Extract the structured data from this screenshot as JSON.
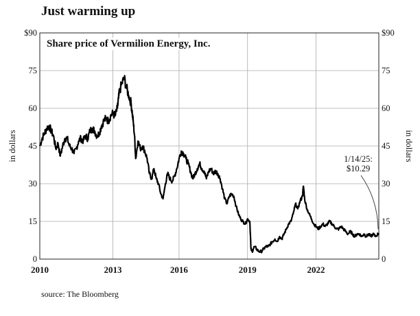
{
  "title": "Just warming up",
  "source": "source: The Bloomberg",
  "chart_data": {
    "type": "line",
    "subtitle": "Share price of Vermilion Energy, Inc.",
    "ylabel_left": "in dollars",
    "ylabel_right": "in dollars",
    "xlim": [
      2010,
      2024.85
    ],
    "ylim": [
      0,
      90
    ],
    "grid": true,
    "x_ticks": [
      {
        "value": 2010,
        "label": "2010"
      },
      {
        "value": 2013.2,
        "label": "2013"
      },
      {
        "value": 2016.1,
        "label": "2016"
      },
      {
        "value": 2019.1,
        "label": "2019"
      },
      {
        "value": 2022.1,
        "label": "2022"
      }
    ],
    "y_ticks": [
      {
        "value": 0,
        "label": "0"
      },
      {
        "value": 15,
        "label": "15"
      },
      {
        "value": 30,
        "label": "30"
      },
      {
        "value": 45,
        "label": "45"
      },
      {
        "value": 60,
        "label": "60"
      },
      {
        "value": 75,
        "label": "75"
      },
      {
        "value": 90,
        "label": "$90"
      }
    ],
    "annotation": {
      "line1": "1/14/25:",
      "line2": "$10.29",
      "x": 2024.85,
      "y": 10.29
    },
    "series": [
      {
        "color": "#000000",
        "points": [
          [
            2010.0,
            45
          ],
          [
            2010.1,
            48
          ],
          [
            2010.2,
            50
          ],
          [
            2010.3,
            52
          ],
          [
            2010.4,
            53
          ],
          [
            2010.5,
            51
          ],
          [
            2010.6,
            49
          ],
          [
            2010.7,
            44
          ],
          [
            2010.8,
            46
          ],
          [
            2010.9,
            41
          ],
          [
            2011.0,
            45
          ],
          [
            2011.1,
            48
          ],
          [
            2011.2,
            48
          ],
          [
            2011.3,
            45
          ],
          [
            2011.4,
            44
          ],
          [
            2011.5,
            42
          ],
          [
            2011.6,
            44
          ],
          [
            2011.7,
            47
          ],
          [
            2011.8,
            48
          ],
          [
            2011.9,
            47
          ],
          [
            2012.0,
            49
          ],
          [
            2012.1,
            48
          ],
          [
            2012.2,
            51
          ],
          [
            2012.3,
            52
          ],
          [
            2012.4,
            51
          ],
          [
            2012.5,
            49
          ],
          [
            2012.6,
            50
          ],
          [
            2012.7,
            53
          ],
          [
            2012.8,
            55
          ],
          [
            2012.9,
            56
          ],
          [
            2013.0,
            55
          ],
          [
            2013.1,
            57
          ],
          [
            2013.2,
            58
          ],
          [
            2013.3,
            57
          ],
          [
            2013.4,
            60
          ],
          [
            2013.45,
            64
          ],
          [
            2013.5,
            67
          ],
          [
            2013.6,
            70
          ],
          [
            2013.7,
            72
          ],
          [
            2013.8,
            68
          ],
          [
            2013.9,
            65
          ],
          [
            2014.0,
            62
          ],
          [
            2014.05,
            58
          ],
          [
            2014.1,
            54
          ],
          [
            2014.15,
            49
          ],
          [
            2014.2,
            40
          ],
          [
            2014.3,
            47
          ],
          [
            2014.4,
            44
          ],
          [
            2014.5,
            45
          ],
          [
            2014.6,
            43
          ],
          [
            2014.7,
            40
          ],
          [
            2014.8,
            34
          ],
          [
            2014.9,
            32
          ],
          [
            2015.0,
            36
          ],
          [
            2015.1,
            32
          ],
          [
            2015.2,
            30
          ],
          [
            2015.3,
            26
          ],
          [
            2015.4,
            24
          ],
          [
            2015.5,
            30
          ],
          [
            2015.6,
            34
          ],
          [
            2015.7,
            32
          ],
          [
            2015.8,
            31
          ],
          [
            2015.9,
            33
          ],
          [
            2016.0,
            36
          ],
          [
            2016.1,
            40
          ],
          [
            2016.2,
            43
          ],
          [
            2016.3,
            42
          ],
          [
            2016.4,
            40
          ],
          [
            2016.5,
            38
          ],
          [
            2016.6,
            35
          ],
          [
            2016.7,
            32
          ],
          [
            2016.8,
            34
          ],
          [
            2016.9,
            36
          ],
          [
            2017.0,
            38
          ],
          [
            2017.1,
            36
          ],
          [
            2017.2,
            35
          ],
          [
            2017.3,
            32
          ],
          [
            2017.4,
            35
          ],
          [
            2017.5,
            36
          ],
          [
            2017.6,
            34
          ],
          [
            2017.7,
            35
          ],
          [
            2017.8,
            34
          ],
          [
            2017.9,
            32
          ],
          [
            2018.0,
            28
          ],
          [
            2018.1,
            24
          ],
          [
            2018.2,
            22
          ],
          [
            2018.3,
            25
          ],
          [
            2018.4,
            26
          ],
          [
            2018.5,
            25
          ],
          [
            2018.6,
            21
          ],
          [
            2018.7,
            18
          ],
          [
            2018.8,
            16
          ],
          [
            2018.9,
            15
          ],
          [
            2019.0,
            14
          ],
          [
            2019.1,
            16
          ],
          [
            2019.2,
            15
          ],
          [
            2019.25,
            4
          ],
          [
            2019.3,
            3
          ],
          [
            2019.4,
            5
          ],
          [
            2019.5,
            4
          ],
          [
            2019.6,
            3
          ],
          [
            2019.7,
            3
          ],
          [
            2019.8,
            4
          ],
          [
            2019.9,
            5
          ],
          [
            2020.0,
            5
          ],
          [
            2020.1,
            6
          ],
          [
            2020.2,
            7
          ],
          [
            2020.3,
            8
          ],
          [
            2020.4,
            7
          ],
          [
            2020.5,
            9
          ],
          [
            2020.6,
            8
          ],
          [
            2020.7,
            10
          ],
          [
            2020.8,
            12
          ],
          [
            2020.9,
            14
          ],
          [
            2021.0,
            15
          ],
          [
            2021.1,
            18
          ],
          [
            2021.2,
            22
          ],
          [
            2021.3,
            20
          ],
          [
            2021.4,
            23
          ],
          [
            2021.5,
            25
          ],
          [
            2021.55,
            29
          ],
          [
            2021.6,
            24
          ],
          [
            2021.7,
            20
          ],
          [
            2021.8,
            18
          ],
          [
            2021.9,
            16
          ],
          [
            2022.0,
            14
          ],
          [
            2022.1,
            13
          ],
          [
            2022.2,
            12
          ],
          [
            2022.3,
            13
          ],
          [
            2022.4,
            14
          ],
          [
            2022.5,
            13
          ],
          [
            2022.6,
            14
          ],
          [
            2022.7,
            15
          ],
          [
            2022.8,
            14
          ],
          [
            2022.9,
            13
          ],
          [
            2023.0,
            12
          ],
          [
            2023.1,
            12
          ],
          [
            2023.2,
            13
          ],
          [
            2023.3,
            12
          ],
          [
            2023.4,
            11
          ],
          [
            2023.5,
            10
          ],
          [
            2023.6,
            11
          ],
          [
            2023.7,
            10
          ],
          [
            2023.8,
            9
          ],
          [
            2023.9,
            10
          ],
          [
            2024.0,
            10
          ],
          [
            2024.1,
            9
          ],
          [
            2024.2,
            10
          ],
          [
            2024.3,
            9
          ],
          [
            2024.4,
            10
          ],
          [
            2024.5,
            9
          ],
          [
            2024.6,
            10
          ],
          [
            2024.7,
            9
          ],
          [
            2024.85,
            10.29
          ]
        ]
      }
    ]
  }
}
